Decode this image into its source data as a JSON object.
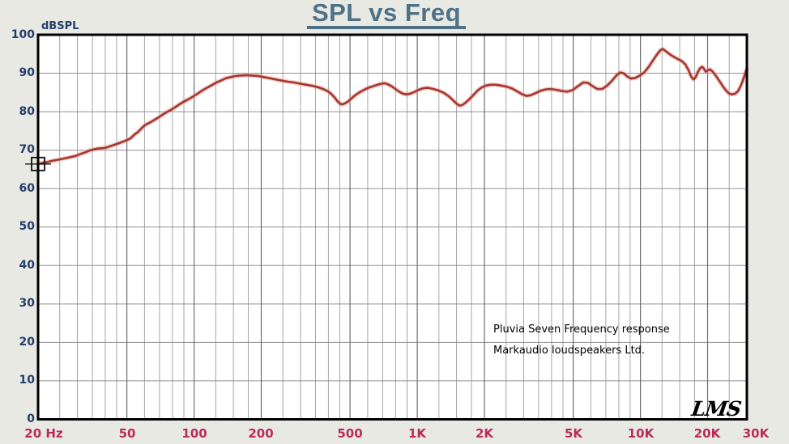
{
  "page": {
    "background": "#e9e9e4"
  },
  "title": {
    "text": "SPL vs Freq",
    "color": "#4d7287"
  },
  "chart_data": {
    "type": "line",
    "title": "SPL vs Freq",
    "xlabel": "Hz",
    "ylabel": "dBSPL",
    "x_axis": {
      "scale": "log",
      "min": 20,
      "max": 30000,
      "major_ticks": [
        {
          "hz": 20,
          "label": "20 Hz"
        },
        {
          "hz": 50,
          "label": "50"
        },
        {
          "hz": 100,
          "label": "100"
        },
        {
          "hz": 200,
          "label": "200"
        },
        {
          "hz": 500,
          "label": "500"
        },
        {
          "hz": 1000,
          "label": "1K"
        },
        {
          "hz": 2000,
          "label": "2K"
        },
        {
          "hz": 5000,
          "label": "5K"
        },
        {
          "hz": 10000,
          "label": "10K"
        },
        {
          "hz": 20000,
          "label": "20K"
        },
        {
          "hz": 30000,
          "label": "30K"
        }
      ],
      "minor_gridlines": [
        25,
        30,
        35,
        40,
        45,
        60,
        70,
        80,
        90,
        125,
        150,
        175,
        250,
        300,
        350,
        400,
        450,
        600,
        700,
        800,
        900,
        1250,
        1500,
        1750,
        2500,
        3000,
        3500,
        4000,
        4500,
        6000,
        7000,
        8000,
        9000,
        12500,
        15000,
        17500,
        25000
      ]
    },
    "y_axis": {
      "label": "dBSPL",
      "min": 0,
      "max": 100,
      "tick_step": 10,
      "ticks": [
        100,
        90,
        80,
        70,
        60,
        50,
        40,
        30,
        20,
        10,
        0
      ]
    },
    "grid": true,
    "legend": "none",
    "series": [
      {
        "name": "Pluvia Seven SPL",
        "color": "#a43730",
        "points": [
          [
            20,
            66.4
          ],
          [
            21,
            66.7
          ],
          [
            22,
            66.9
          ],
          [
            23,
            67.2
          ],
          [
            24,
            67.4
          ],
          [
            25,
            67.6
          ],
          [
            26,
            67.8
          ],
          [
            27,
            68.0
          ],
          [
            28,
            68.2
          ],
          [
            29.5,
            68.5
          ],
          [
            31,
            69.0
          ],
          [
            32.5,
            69.4
          ],
          [
            34,
            69.9
          ],
          [
            35.5,
            70.2
          ],
          [
            37,
            70.4
          ],
          [
            38.5,
            70.5
          ],
          [
            40,
            70.6
          ],
          [
            42,
            71.0
          ],
          [
            44,
            71.4
          ],
          [
            46,
            71.8
          ],
          [
            48,
            72.2
          ],
          [
            50,
            72.6
          ],
          [
            52,
            73.1
          ],
          [
            54,
            74.0
          ],
          [
            56,
            74.7
          ],
          [
            58,
            75.6
          ],
          [
            60,
            76.4
          ],
          [
            62,
            76.9
          ],
          [
            64,
            77.3
          ],
          [
            67,
            78.0
          ],
          [
            70,
            78.7
          ],
          [
            73,
            79.4
          ],
          [
            76,
            80.0
          ],
          [
            79,
            80.5
          ],
          [
            82,
            81.1
          ],
          [
            85,
            81.7
          ],
          [
            88,
            82.3
          ],
          [
            92,
            82.9
          ],
          [
            96,
            83.5
          ],
          [
            100,
            84.1
          ],
          [
            105,
            84.9
          ],
          [
            110,
            85.7
          ],
          [
            115,
            86.3
          ],
          [
            120,
            86.9
          ],
          [
            126,
            87.6
          ],
          [
            132,
            88.1
          ],
          [
            139,
            88.7
          ],
          [
            146,
            89.0
          ],
          [
            154,
            89.3
          ],
          [
            162,
            89.4
          ],
          [
            172,
            89.5
          ],
          [
            182,
            89.4
          ],
          [
            193,
            89.3
          ],
          [
            205,
            89.0
          ],
          [
            218,
            88.7
          ],
          [
            232,
            88.4
          ],
          [
            247,
            88.1
          ],
          [
            263,
            87.8
          ],
          [
            280,
            87.6
          ],
          [
            298,
            87.3
          ],
          [
            318,
            87.0
          ],
          [
            340,
            86.7
          ],
          [
            362,
            86.3
          ],
          [
            382,
            85.8
          ],
          [
            398,
            85.3
          ],
          [
            412,
            84.6
          ],
          [
            426,
            83.7
          ],
          [
            438,
            82.8
          ],
          [
            450,
            82.1
          ],
          [
            460,
            81.9
          ],
          [
            472,
            82.1
          ],
          [
            486,
            82.5
          ],
          [
            502,
            83.2
          ],
          [
            520,
            84.0
          ],
          [
            540,
            84.7
          ],
          [
            562,
            85.3
          ],
          [
            588,
            85.9
          ],
          [
            616,
            86.4
          ],
          [
            648,
            86.8
          ],
          [
            682,
            87.2
          ],
          [
            712,
            87.4
          ],
          [
            740,
            87.1
          ],
          [
            768,
            86.6
          ],
          [
            798,
            85.9
          ],
          [
            830,
            85.2
          ],
          [
            862,
            84.7
          ],
          [
            895,
            84.5
          ],
          [
            930,
            84.7
          ],
          [
            970,
            85.1
          ],
          [
            1015,
            85.7
          ],
          [
            1065,
            86.1
          ],
          [
            1120,
            86.2
          ],
          [
            1180,
            85.9
          ],
          [
            1245,
            85.5
          ],
          [
            1315,
            84.9
          ],
          [
            1385,
            84.0
          ],
          [
            1445,
            83.0
          ],
          [
            1500,
            82.1
          ],
          [
            1545,
            81.6
          ],
          [
            1590,
            81.7
          ],
          [
            1650,
            82.4
          ],
          [
            1715,
            83.3
          ],
          [
            1790,
            84.4
          ],
          [
            1865,
            85.5
          ],
          [
            1945,
            86.3
          ],
          [
            2030,
            86.8
          ],
          [
            2130,
            87.0
          ],
          [
            2250,
            87.0
          ],
          [
            2380,
            86.8
          ],
          [
            2520,
            86.5
          ],
          [
            2670,
            86.0
          ],
          [
            2820,
            85.2
          ],
          [
            2960,
            84.5
          ],
          [
            3090,
            84.1
          ],
          [
            3230,
            84.3
          ],
          [
            3380,
            84.8
          ],
          [
            3560,
            85.4
          ],
          [
            3760,
            85.8
          ],
          [
            3960,
            85.9
          ],
          [
            4180,
            85.7
          ],
          [
            4420,
            85.4
          ],
          [
            4680,
            85.2
          ],
          [
            4960,
            85.6
          ],
          [
            5240,
            86.6
          ],
          [
            5540,
            87.6
          ],
          [
            5820,
            87.5
          ],
          [
            6080,
            86.7
          ],
          [
            6400,
            85.9
          ],
          [
            6750,
            85.9
          ],
          [
            7100,
            86.8
          ],
          [
            7450,
            88.0
          ],
          [
            7800,
            89.4
          ],
          [
            8100,
            90.2
          ],
          [
            8400,
            90.0
          ],
          [
            8750,
            89.1
          ],
          [
            9100,
            88.6
          ],
          [
            9500,
            88.8
          ],
          [
            9950,
            89.4
          ],
          [
            10400,
            90.2
          ],
          [
            10900,
            91.7
          ],
          [
            11400,
            93.4
          ],
          [
            11900,
            95.0
          ],
          [
            12300,
            96.0
          ],
          [
            12600,
            96.3
          ],
          [
            12950,
            95.8
          ],
          [
            13400,
            95.1
          ],
          [
            13900,
            94.5
          ],
          [
            14600,
            93.8
          ],
          [
            15300,
            93.2
          ],
          [
            15900,
            92.3
          ],
          [
            16400,
            90.9
          ],
          [
            16900,
            89.1
          ],
          [
            17300,
            88.4
          ],
          [
            17700,
            89.0
          ],
          [
            18100,
            90.3
          ],
          [
            18500,
            91.3
          ],
          [
            18900,
            91.7
          ],
          [
            19250,
            91.2
          ],
          [
            19600,
            90.4
          ],
          [
            20000,
            90.7
          ],
          [
            20500,
            91.0
          ],
          [
            21100,
            90.4
          ],
          [
            21800,
            89.3
          ],
          [
            22600,
            88.0
          ],
          [
            23400,
            86.6
          ],
          [
            24200,
            85.5
          ],
          [
            25000,
            84.7
          ],
          [
            25800,
            84.5
          ],
          [
            26600,
            84.7
          ],
          [
            27400,
            85.4
          ],
          [
            28100,
            86.6
          ],
          [
            28700,
            87.9
          ],
          [
            29200,
            89.2
          ],
          [
            29600,
            90.3
          ],
          [
            30000,
            91.2
          ]
        ]
      }
    ],
    "annotations": [
      {
        "text": "Pluvia Seven Frequency response",
        "x_hz": 2200,
        "y_db": 23.3
      },
      {
        "text": "Markaudio loudspeakers Ltd.",
        "x_hz": 2200,
        "y_db": 17.8
      }
    ],
    "cursor_marker": {
      "x_hz": 20,
      "y_db": 66.4
    },
    "signature": {
      "text": "LMS",
      "x_hz": 18200,
      "y_db": 2.6
    },
    "colors": {
      "curve": "#a43730",
      "curve_halo": "rgba(228,148,138,0.45)",
      "x_labels": "#b82c58",
      "y_labels": "#24406c",
      "title": "#4d7287",
      "grid_minor": "#a6a6a6",
      "grid_major": "#6f6f6f",
      "grid_horizontal": "#919191",
      "plot_background": "#ffffff",
      "plot_border": "#000000"
    }
  }
}
